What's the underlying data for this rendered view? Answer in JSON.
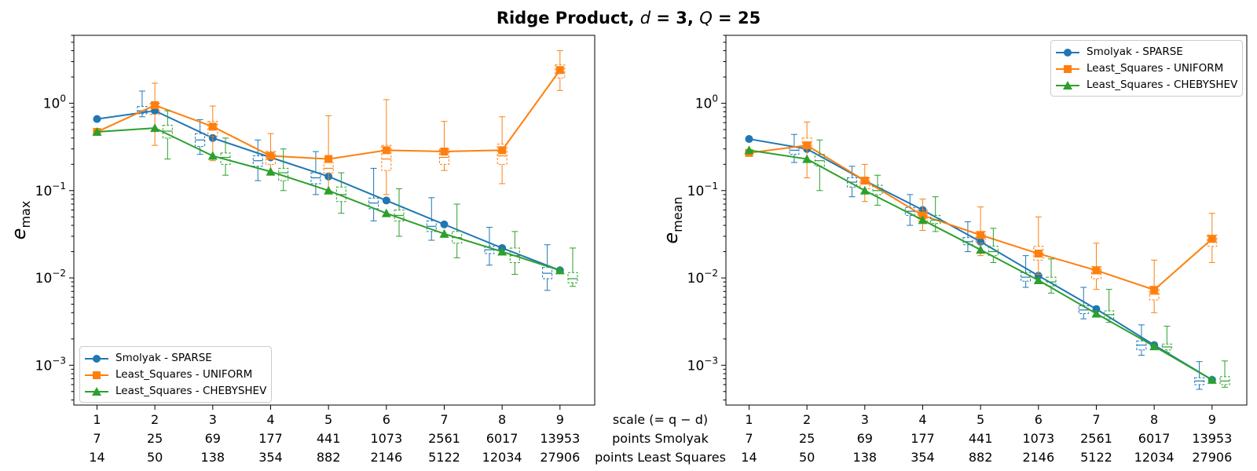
{
  "chart_data": [
    {
      "type": "line",
      "title": "Ridge Product, d = 3, Q = 25",
      "ylabel": "e_max",
      "yscale": "log",
      "ylim": [
        0.00035,
        6.0
      ],
      "xlim": [
        0.6,
        9.6
      ],
      "legend_position": "lower-left",
      "x": [
        1,
        2,
        3,
        4,
        5,
        6,
        7,
        8,
        9
      ],
      "x_tick_rows": [
        {
          "name": "scale (= q − d)",
          "labels": [
            "1",
            "2",
            "3",
            "4",
            "5",
            "6",
            "7",
            "8",
            "9"
          ]
        },
        {
          "name": "points Smolyak",
          "labels": [
            "7",
            "25",
            "69",
            "177",
            "441",
            "1073",
            "2561",
            "6017",
            "13953"
          ]
        },
        {
          "name": "points Least Squares",
          "labels": [
            "14",
            "50",
            "138",
            "354",
            "882",
            "2146",
            "5122",
            "12034",
            "27906"
          ]
        }
      ],
      "series": [
        {
          "name": "Smolyak - SPARSE",
          "color": "#1f77b4",
          "marker": "circle",
          "values": [
            0.66,
            0.82,
            0.4,
            0.24,
            0.145,
            0.077,
            0.041,
            0.022,
            0.0122
          ],
          "boxes": [
            null,
            [
              0.7,
              0.76,
              0.82,
              0.92,
              1.38
            ],
            [
              0.26,
              0.32,
              0.38,
              0.45,
              0.65
            ],
            [
              0.13,
              0.19,
              0.22,
              0.25,
              0.38
            ],
            [
              0.09,
              0.12,
              0.14,
              0.16,
              0.28
            ],
            [
              0.045,
              0.062,
              0.072,
              0.082,
              0.18
            ],
            [
              0.027,
              0.034,
              0.039,
              0.045,
              0.083
            ],
            [
              0.014,
              0.019,
              0.021,
              0.023,
              0.038
            ],
            [
              0.0072,
              0.0098,
              0.0113,
              0.0132,
              0.024
            ]
          ]
        },
        {
          "name": "Least_Squares - UNIFORM",
          "color": "#ff7f0e",
          "marker": "square",
          "values": [
            0.47,
            0.95,
            0.54,
            0.25,
            0.23,
            0.29,
            0.28,
            0.29,
            2.4
          ],
          "boxes": [
            null,
            [
              0.33,
              0.75,
              0.9,
              1.0,
              1.7
            ],
            [
              0.22,
              0.42,
              0.52,
              0.62,
              0.93
            ],
            [
              0.15,
              0.2,
              0.24,
              0.28,
              0.45
            ],
            [
              0.1,
              0.16,
              0.18,
              0.21,
              0.72
            ],
            [
              0.09,
              0.17,
              0.23,
              0.33,
              1.1
            ],
            [
              0.17,
              0.2,
              0.24,
              0.3,
              0.62
            ],
            [
              0.12,
              0.2,
              0.25,
              0.34,
              0.7
            ],
            [
              1.4,
              1.95,
              2.2,
              2.75,
              4.0
            ]
          ]
        },
        {
          "name": "Least_Squares - CHEBYSHEV",
          "color": "#2ca02c",
          "marker": "triangle",
          "values": [
            0.47,
            0.52,
            0.25,
            0.165,
            0.1,
            0.055,
            0.032,
            0.02,
            0.0122
          ],
          "boxes": [
            null,
            [
              0.23,
              0.4,
              0.48,
              0.56,
              0.82
            ],
            [
              0.15,
              0.2,
              0.24,
              0.27,
              0.4
            ],
            [
              0.1,
              0.13,
              0.16,
              0.18,
              0.3
            ],
            [
              0.055,
              0.075,
              0.09,
              0.11,
              0.16
            ],
            [
              0.03,
              0.045,
              0.052,
              0.06,
              0.105
            ],
            [
              0.017,
              0.025,
              0.029,
              0.034,
              0.07
            ],
            [
              0.011,
              0.015,
              0.018,
              0.022,
              0.034
            ],
            [
              0.008,
              0.0088,
              0.0098,
              0.0115,
              0.022
            ]
          ]
        }
      ]
    },
    {
      "type": "line",
      "ylabel": "e_mean",
      "yscale": "log",
      "ylim": [
        0.00035,
        6.0
      ],
      "xlim": [
        0.6,
        9.6
      ],
      "legend_position": "upper-right",
      "x": [
        1,
        2,
        3,
        4,
        5,
        6,
        7,
        8,
        9
      ],
      "x_tick_rows": [
        {
          "name": "scale (= q − d)",
          "labels": [
            "1",
            "2",
            "3",
            "4",
            "5",
            "6",
            "7",
            "8",
            "9"
          ]
        },
        {
          "name": "points Smolyak",
          "labels": [
            "7",
            "25",
            "69",
            "177",
            "441",
            "1073",
            "2561",
            "6017",
            "13953"
          ]
        },
        {
          "name": "points Least Squares",
          "labels": [
            "14",
            "50",
            "138",
            "354",
            "882",
            "2146",
            "5122",
            "12034",
            "27906"
          ]
        }
      ],
      "series": [
        {
          "name": "Smolyak - SPARSE",
          "color": "#1f77b4",
          "marker": "circle",
          "values": [
            0.39,
            0.3,
            0.13,
            0.06,
            0.026,
            0.0106,
            0.0044,
            0.0017,
            0.00068
          ],
          "boxes": [
            null,
            [
              0.21,
              0.26,
              0.29,
              0.32,
              0.44
            ],
            [
              0.085,
              0.11,
              0.125,
              0.14,
              0.19
            ],
            [
              0.04,
              0.052,
              0.058,
              0.064,
              0.09
            ],
            [
              0.02,
              0.024,
              0.026,
              0.029,
              0.044
            ],
            [
              0.0078,
              0.0092,
              0.0102,
              0.0115,
              0.018
            ],
            [
              0.0034,
              0.0039,
              0.0043,
              0.0048,
              0.0078
            ],
            [
              0.0013,
              0.0015,
              0.0017,
              0.0019,
              0.0029
            ],
            [
              0.00053,
              0.0006,
              0.00066,
              0.00072,
              0.0011
            ]
          ]
        },
        {
          "name": "Least_Squares - UNIFORM",
          "color": "#ff7f0e",
          "marker": "square",
          "values": [
            0.27,
            0.33,
            0.13,
            0.052,
            0.031,
            0.019,
            0.0122,
            0.0073,
            0.028
          ],
          "boxes": [
            null,
            [
              0.14,
              0.3,
              0.35,
              0.4,
              0.61
            ],
            [
              0.075,
              0.105,
              0.12,
              0.14,
              0.2
            ],
            [
              0.035,
              0.045,
              0.052,
              0.06,
              0.08
            ],
            [
              0.018,
              0.025,
              0.029,
              0.034,
              0.065
            ],
            [
              0.011,
              0.016,
              0.019,
              0.023,
              0.05
            ],
            [
              0.0074,
              0.0098,
              0.0112,
              0.0135,
              0.025
            ],
            [
              0.004,
              0.0056,
              0.0065,
              0.008,
              0.016
            ],
            [
              0.015,
              0.023,
              0.027,
              0.031,
              0.055
            ]
          ]
        },
        {
          "name": "Least_Squares - CHEBYSHEV",
          "color": "#2ca02c",
          "marker": "triangle",
          "values": [
            0.29,
            0.23,
            0.1,
            0.046,
            0.021,
            0.0094,
            0.0039,
            0.00165,
            0.00068
          ],
          "boxes": [
            null,
            [
              0.1,
              0.19,
              0.22,
              0.26,
              0.38
            ],
            [
              0.068,
              0.09,
              0.1,
              0.115,
              0.15
            ],
            [
              0.034,
              0.042,
              0.046,
              0.052,
              0.085
            ],
            [
              0.015,
              0.018,
              0.02,
              0.023,
              0.037
            ],
            [
              0.0067,
              0.0081,
              0.009,
              0.0102,
              0.0165
            ],
            [
              0.0031,
              0.0034,
              0.0038,
              0.0042,
              0.0074
            ],
            [
              0.0014,
              0.0015,
              0.00162,
              0.00175,
              0.0028
            ],
            [
              0.00056,
              0.0006,
              0.00066,
              0.00074,
              0.00112
            ]
          ]
        }
      ]
    }
  ]
}
